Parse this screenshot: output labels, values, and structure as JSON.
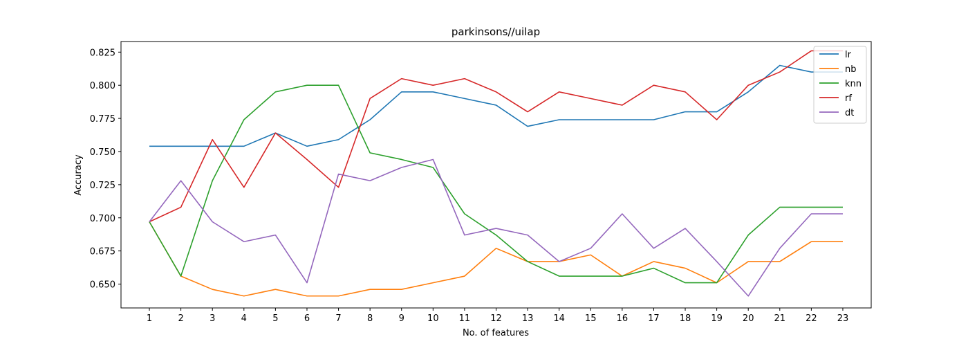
{
  "chart_data": {
    "type": "line",
    "title": "parkinsons//uilap",
    "xlabel": "No. of features",
    "ylabel": "Accuracy",
    "x": [
      1,
      2,
      3,
      4,
      5,
      6,
      7,
      8,
      9,
      10,
      11,
      12,
      13,
      14,
      15,
      16,
      17,
      18,
      19,
      20,
      21,
      22,
      23
    ],
    "x_tick_labels": [
      "1",
      "2",
      "3",
      "4",
      "5",
      "6",
      "7",
      "8",
      "9",
      "10",
      "11",
      "12",
      "13",
      "14",
      "15",
      "16",
      "17",
      "18",
      "19",
      "20",
      "21",
      "22",
      "23"
    ],
    "xlim": [
      0.1,
      23.9
    ],
    "ylim": [
      0.632,
      0.833
    ],
    "y_ticks": [
      0.65,
      0.675,
      0.7,
      0.725,
      0.75,
      0.775,
      0.8,
      0.825
    ],
    "y_tick_labels": [
      "0.650",
      "0.675",
      "0.700",
      "0.725",
      "0.750",
      "0.775",
      "0.800",
      "0.825"
    ],
    "grid": false,
    "legend_position": "top-right",
    "series": [
      {
        "name": "lr",
        "color": "#1f77b4",
        "values": [
          0.754,
          0.754,
          0.754,
          0.754,
          0.764,
          0.754,
          0.759,
          0.774,
          0.795,
          0.795,
          0.79,
          0.785,
          0.769,
          0.774,
          0.774,
          0.774,
          0.774,
          0.78,
          0.78,
          0.795,
          0.815,
          0.81,
          0.81
        ]
      },
      {
        "name": "nb",
        "color": "#ff7f0e",
        "values": [
          0.697,
          0.656,
          0.646,
          0.641,
          0.646,
          0.641,
          0.641,
          0.646,
          0.646,
          0.651,
          0.656,
          0.677,
          0.667,
          0.667,
          0.672,
          0.656,
          0.667,
          0.662,
          0.651,
          0.667,
          0.667,
          0.682,
          0.682
        ]
      },
      {
        "name": "knn",
        "color": "#2ca02c",
        "values": [
          0.697,
          0.656,
          0.728,
          0.774,
          0.795,
          0.8,
          0.8,
          0.749,
          0.744,
          0.738,
          0.703,
          0.687,
          0.667,
          0.656,
          0.656,
          0.656,
          0.662,
          0.651,
          0.651,
          0.687,
          0.708,
          0.708,
          0.708
        ]
      },
      {
        "name": "rf",
        "color": "#d62728",
        "values": [
          0.697,
          0.708,
          0.759,
          0.723,
          0.764,
          0.744,
          0.723,
          0.79,
          0.805,
          0.8,
          0.805,
          0.795,
          0.78,
          0.795,
          0.79,
          0.785,
          0.8,
          0.795,
          0.774,
          0.8,
          0.81,
          0.826,
          0.826
        ]
      },
      {
        "name": "dt",
        "color": "#9467bd",
        "values": [
          0.697,
          0.728,
          0.697,
          0.682,
          0.687,
          0.651,
          0.733,
          0.728,
          0.738,
          0.744,
          0.687,
          0.692,
          0.687,
          0.667,
          0.677,
          0.703,
          0.677,
          0.692,
          0.667,
          0.641,
          0.677,
          0.703,
          0.703
        ]
      }
    ]
  }
}
